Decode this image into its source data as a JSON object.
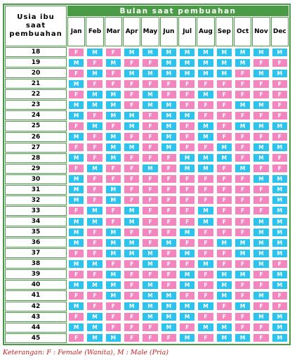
{
  "header": {
    "top_title": "Bulan saat pembuahan",
    "age_label": "Usia ibu saat pembuahan",
    "months": [
      "Jan",
      "Feb",
      "Mar",
      "Apr",
      "May",
      "Jun",
      "Jul",
      "Aug",
      "Sep",
      "Oct",
      "Nov",
      "Dec"
    ]
  },
  "rows": [
    {
      "age": "18",
      "values": [
        "F",
        "M",
        "F",
        "M",
        "M",
        "M",
        "M",
        "M",
        "M",
        "M",
        "M",
        "M"
      ]
    },
    {
      "age": "19",
      "values": [
        "M",
        "F",
        "M",
        "F",
        "F",
        "M",
        "M",
        "M",
        "M",
        "M",
        "F",
        "F"
      ]
    },
    {
      "age": "20",
      "values": [
        "F",
        "M",
        "F",
        "M",
        "M",
        "M",
        "M",
        "M",
        "M",
        "F",
        "M",
        "M"
      ]
    },
    {
      "age": "21",
      "values": [
        "M",
        "F",
        "F",
        "F",
        "F",
        "F",
        "F",
        "F",
        "F",
        "F",
        "F",
        "F"
      ]
    },
    {
      "age": "22",
      "values": [
        "F",
        "M",
        "M",
        "F",
        "M",
        "F",
        "F",
        "M",
        "F",
        "F",
        "F",
        "F"
      ]
    },
    {
      "age": "23",
      "values": [
        "M",
        "M",
        "M",
        "F",
        "M",
        "M",
        "F",
        "F",
        "F",
        "M",
        "M",
        "F"
      ]
    },
    {
      "age": "24",
      "values": [
        "M",
        "F",
        "M",
        "M",
        "F",
        "M",
        "M",
        "F",
        "F",
        "F",
        "F",
        "F"
      ]
    },
    {
      "age": "25",
      "values": [
        "F",
        "M",
        "F",
        "M",
        "F",
        "M",
        "F",
        "M",
        "F",
        "M",
        "M",
        "M"
      ]
    },
    {
      "age": "26",
      "values": [
        "M",
        "F",
        "M",
        "F",
        "F",
        "M",
        "F",
        "M",
        "F",
        "F",
        "F",
        "F"
      ]
    },
    {
      "age": "27",
      "values": [
        "F",
        "F",
        "M",
        "M",
        "F",
        "M",
        "F",
        "F",
        "M",
        "F",
        "M",
        "M"
      ]
    },
    {
      "age": "28",
      "values": [
        "M",
        "F",
        "M",
        "F",
        "F",
        "F",
        "M",
        "M",
        "M",
        "F",
        "M",
        "F"
      ]
    },
    {
      "age": "29",
      "values": [
        "F",
        "M",
        "F",
        "F",
        "M",
        "F",
        "M",
        "M",
        "F",
        "M",
        "F",
        "F"
      ]
    },
    {
      "age": "30",
      "values": [
        "M",
        "F",
        "F",
        "F",
        "F",
        "F",
        "F",
        "F",
        "F",
        "F",
        "M",
        "M"
      ]
    },
    {
      "age": "31",
      "values": [
        "M",
        "F",
        "M",
        "F",
        "F",
        "F",
        "F",
        "F",
        "F",
        "F",
        "F",
        "M"
      ]
    },
    {
      "age": "32",
      "values": [
        "M",
        "F",
        "M",
        "F",
        "F",
        "F",
        "F",
        "F",
        "F",
        "F",
        "F",
        "M"
      ]
    },
    {
      "age": "33",
      "values": [
        "F",
        "M",
        "F",
        "M",
        "F",
        "F",
        "F",
        "M",
        "F",
        "F",
        "F",
        "M"
      ]
    },
    {
      "age": "34",
      "values": [
        "M",
        "M",
        "F",
        "M",
        "F",
        "F",
        "F",
        "M",
        "F",
        "F",
        "M",
        "M"
      ]
    },
    {
      "age": "35",
      "values": [
        "M",
        "F",
        "M",
        "F",
        "F",
        "F",
        "M",
        "F",
        "F",
        "F",
        "M",
        "M"
      ]
    },
    {
      "age": "36",
      "values": [
        "M",
        "F",
        "M",
        "M",
        "F",
        "M",
        "F",
        "F",
        "M",
        "M",
        "M",
        "M"
      ]
    },
    {
      "age": "37",
      "values": [
        "F",
        "F",
        "M",
        "M",
        "M",
        "F",
        "M",
        "F",
        "F",
        "M",
        "M",
        "M"
      ]
    },
    {
      "age": "38",
      "values": [
        "M",
        "M",
        "F",
        "F",
        "M",
        "F",
        "F",
        "M",
        "F",
        "F",
        "M",
        "F"
      ]
    },
    {
      "age": "39",
      "values": [
        "F",
        "F",
        "M",
        "F",
        "F",
        "F",
        "M",
        "F",
        "M",
        "M",
        "F",
        "M"
      ]
    },
    {
      "age": "40",
      "values": [
        "M",
        "M",
        "M",
        "F",
        "M",
        "F",
        "M",
        "F",
        "M",
        "F",
        "F",
        "M"
      ]
    },
    {
      "age": "41",
      "values": [
        "F",
        "F",
        "M",
        "F",
        "M",
        "M",
        "F",
        "F",
        "M",
        "F",
        "M",
        "F"
      ]
    },
    {
      "age": "42",
      "values": [
        "M",
        "F",
        "F",
        "M",
        "M",
        "M",
        "M",
        "M",
        "F",
        "M",
        "F",
        "F"
      ]
    },
    {
      "age": "43",
      "values": [
        "F",
        "M",
        "F",
        "F",
        "M",
        "M",
        "M",
        "F",
        "F",
        "F",
        "M",
        "M"
      ]
    },
    {
      "age": "44",
      "values": [
        "M",
        "M",
        "F",
        "F",
        "F",
        "M",
        "F",
        "M",
        "M",
        "F",
        "F",
        "M"
      ]
    },
    {
      "age": "45",
      "values": [
        "F",
        "M",
        "M",
        "F",
        "F",
        "F",
        "M",
        "F",
        "M",
        "M",
        "F",
        "M"
      ]
    }
  ],
  "legend": "Keterangan: F : Female (Wanita),  M : Male (Pria)",
  "colors": {
    "female": "#f486bf",
    "male": "#2cc4ef",
    "frame": "#4a9b45",
    "legend_text": "#c82020"
  }
}
